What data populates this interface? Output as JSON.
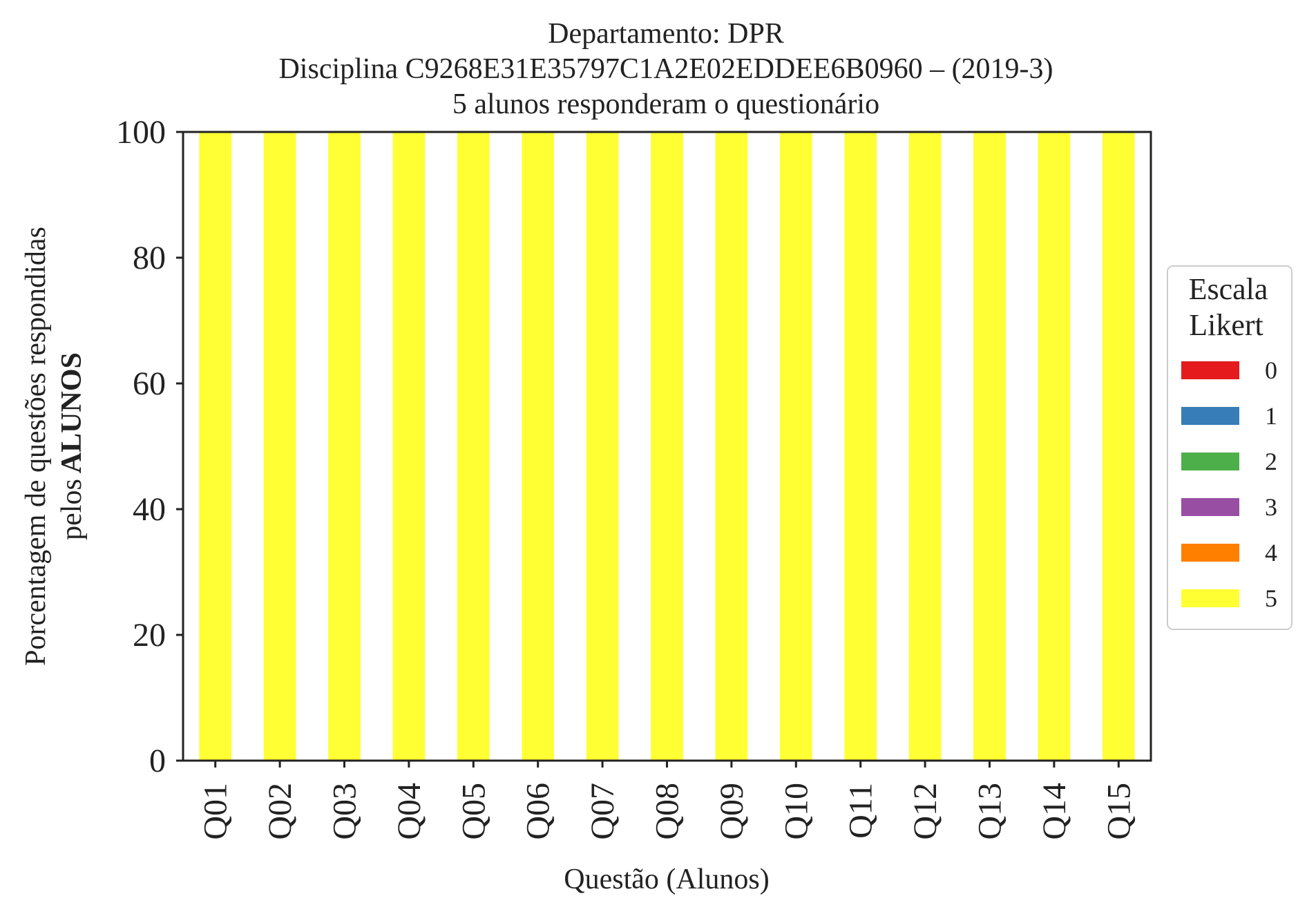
{
  "chart_data": {
    "type": "bar",
    "stacked": true,
    "title": [
      "Departamento: DPR",
      "Disciplina C9268E31E35797C1A2E02EDDEE6B0960 – (2019-3)",
      "5 alunos responderam o questionário"
    ],
    "xlabel": "Questão (Alunos)",
    "ylabel_line1": "Porcentagem de questões respondidas",
    "ylabel_line2_prefix": "pelos",
    "ylabel_line2_bold": "ALUNOS",
    "ylim": [
      0,
      100
    ],
    "yticks": [
      0,
      20,
      40,
      60,
      80,
      100
    ],
    "grid": false,
    "categories": [
      "Q01",
      "Q02",
      "Q03",
      "Q04",
      "Q05",
      "Q06",
      "Q07",
      "Q08",
      "Q09",
      "Q10",
      "Q11",
      "Q12",
      "Q13",
      "Q14",
      "Q15"
    ],
    "legend_title": [
      "Escala",
      "Likert"
    ],
    "legend_position": "right",
    "series": [
      {
        "name": "0",
        "color": "#e41a1c",
        "values": [
          0,
          0,
          0,
          0,
          0,
          0,
          0,
          0,
          0,
          0,
          0,
          0,
          0,
          0,
          0
        ]
      },
      {
        "name": "1",
        "color": "#377eb8",
        "values": [
          0,
          0,
          0,
          0,
          0,
          0,
          0,
          0,
          0,
          0,
          0,
          0,
          0,
          0,
          0
        ]
      },
      {
        "name": "2",
        "color": "#4daf4a",
        "values": [
          0,
          0,
          0,
          0,
          0,
          0,
          0,
          0,
          0,
          0,
          0,
          0,
          0,
          0,
          0
        ]
      },
      {
        "name": "3",
        "color": "#984ea3",
        "values": [
          0,
          0,
          0,
          0,
          0,
          0,
          0,
          0,
          0,
          0,
          0,
          0,
          0,
          0,
          0
        ]
      },
      {
        "name": "4",
        "color": "#ff7f00",
        "values": [
          0,
          0,
          0,
          0,
          0,
          0,
          0,
          0,
          0,
          0,
          0,
          0,
          0,
          0,
          0
        ]
      },
      {
        "name": "5",
        "color": "#ffff33",
        "values": [
          100,
          100,
          100,
          100,
          100,
          100,
          100,
          100,
          100,
          100,
          100,
          100,
          100,
          100,
          100
        ]
      }
    ]
  }
}
